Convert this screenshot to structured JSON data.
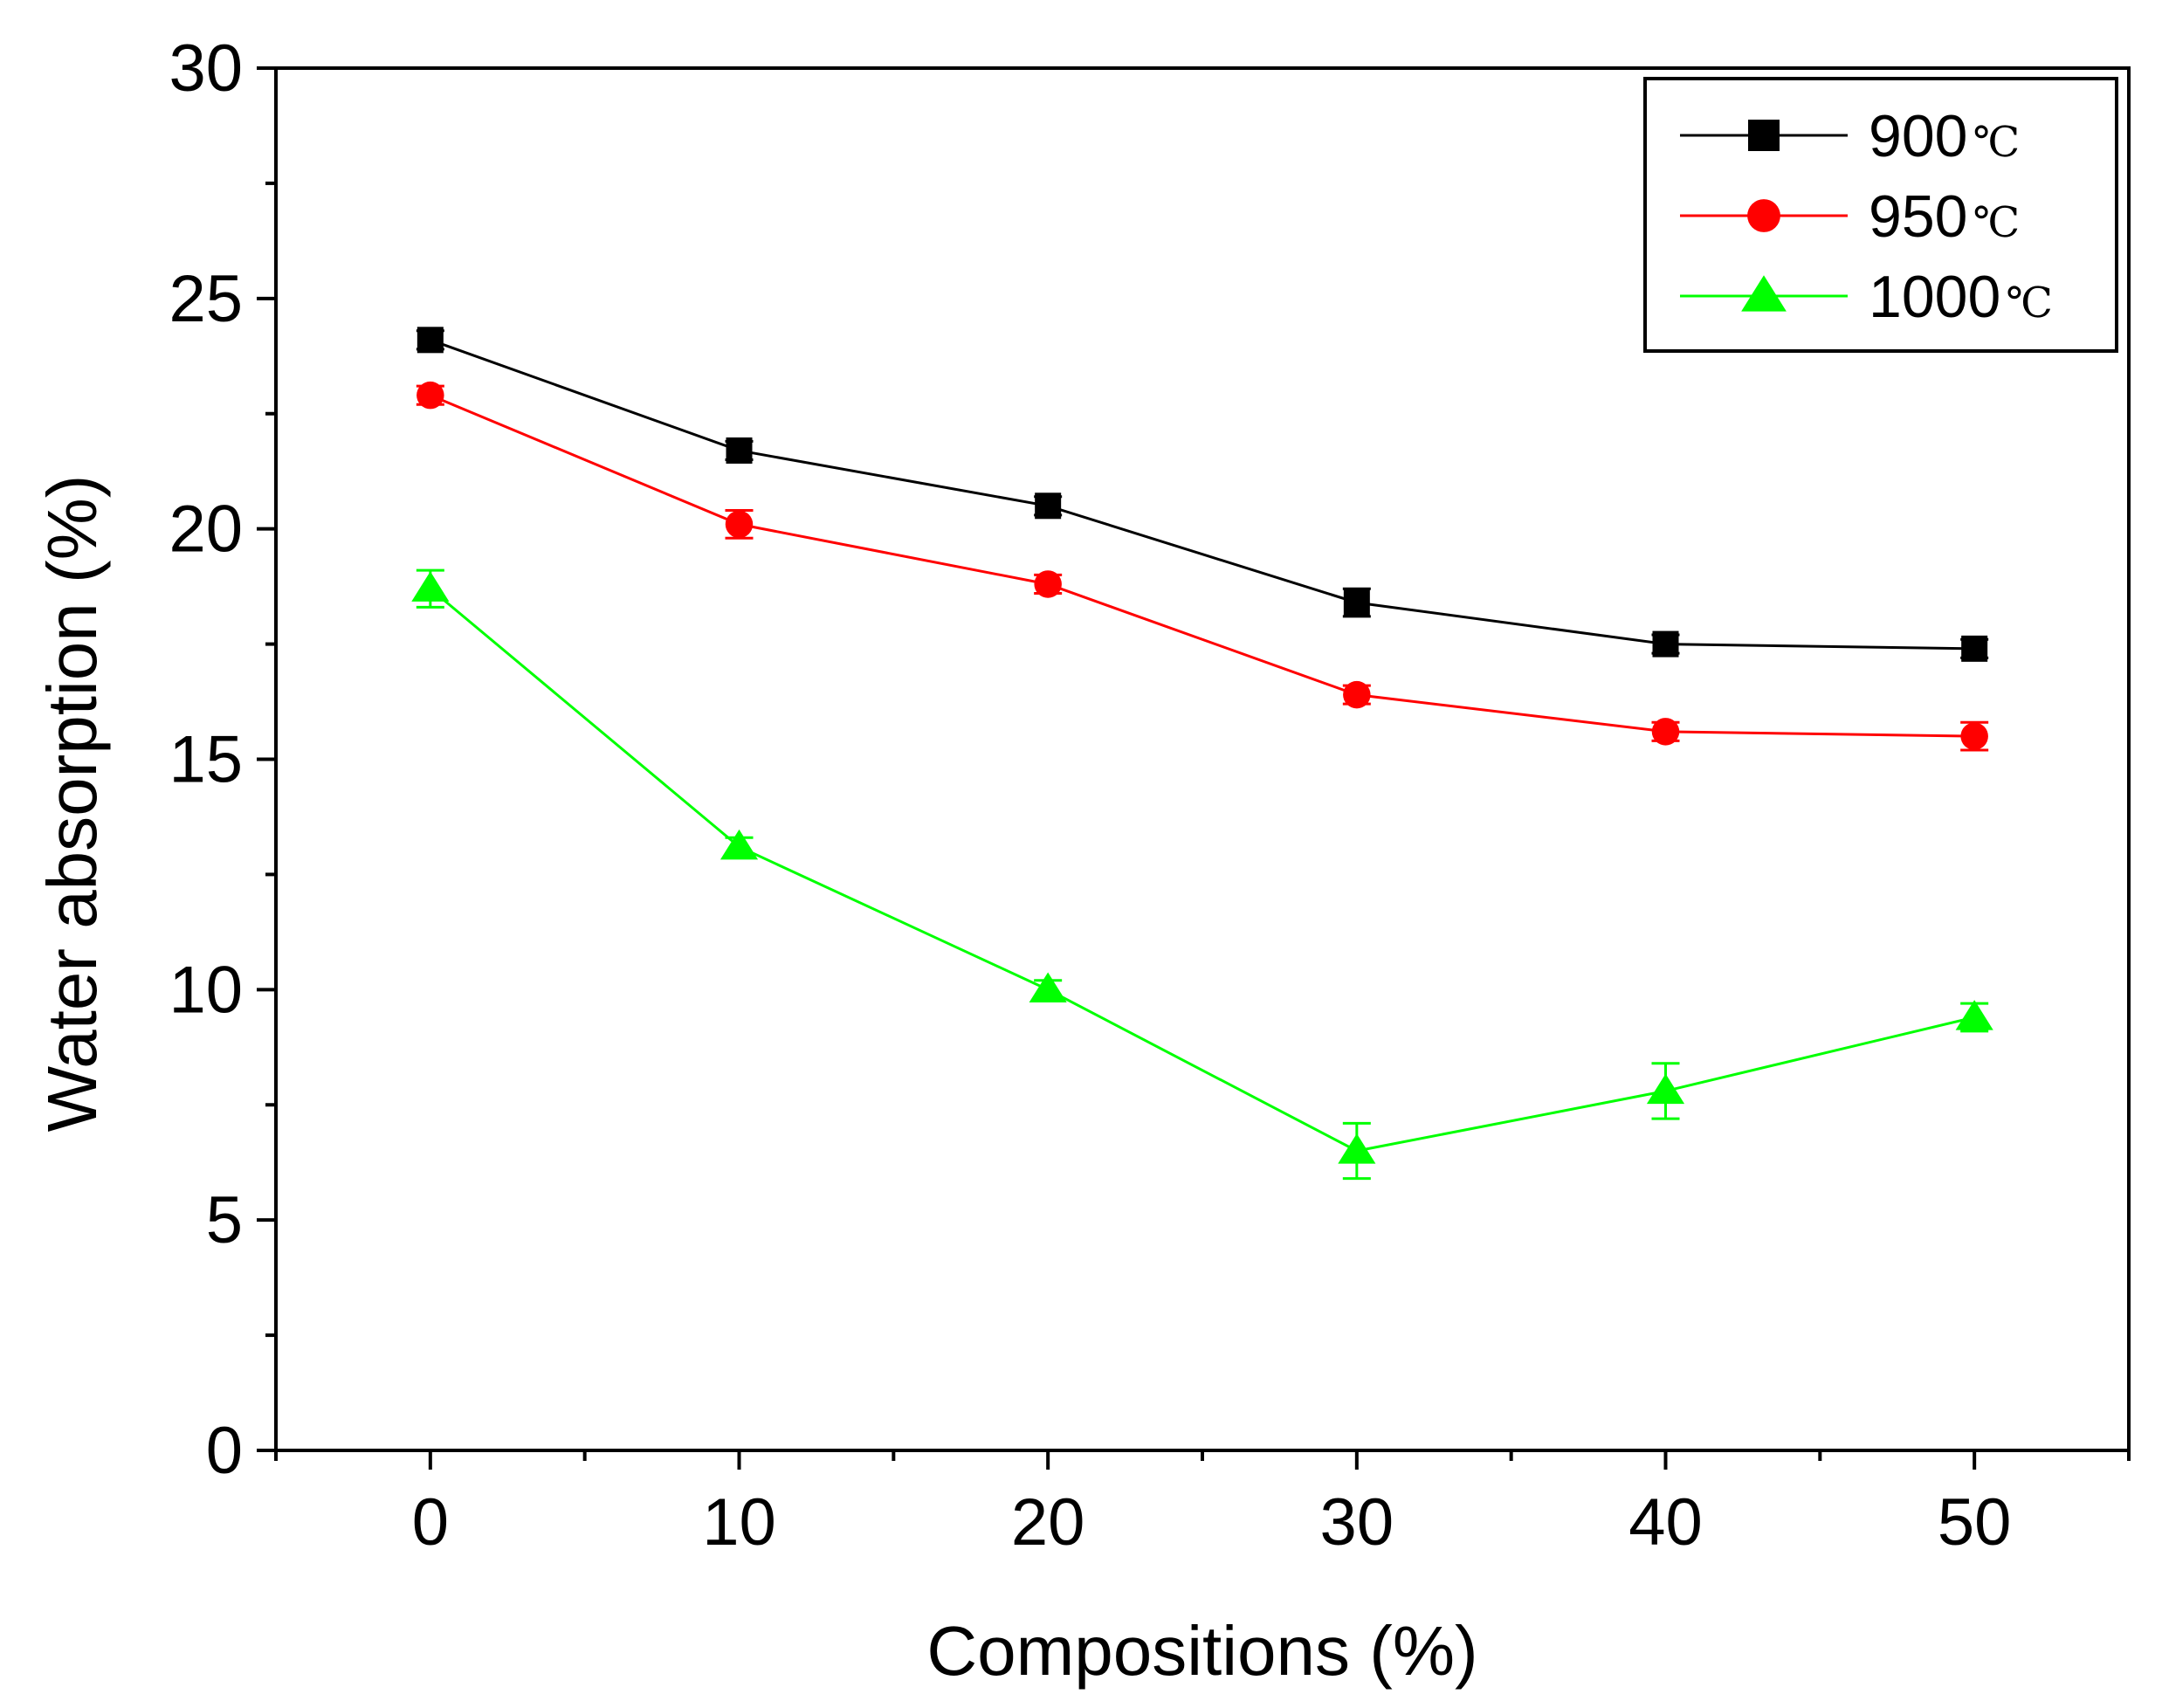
{
  "chart_data": {
    "type": "line",
    "xlabel": "Compositions (%)",
    "ylabel": "Water absorption (%)",
    "xlim": [
      -5,
      55
    ],
    "ylim": [
      0,
      30
    ],
    "x_ticks": [
      0,
      10,
      20,
      30,
      40,
      50
    ],
    "y_ticks": [
      0,
      5,
      10,
      15,
      20,
      25,
      30
    ],
    "x": [
      0,
      10,
      20,
      30,
      40,
      50
    ],
    "legend_position": "top-right",
    "series": [
      {
        "name": "900℃",
        "name_value": "900",
        "name_unit": "℃",
        "color": "#000000",
        "marker": "square",
        "values": [
          24.1,
          21.7,
          20.5,
          18.4,
          17.5,
          17.4
        ],
        "errors": [
          0.2,
          0.2,
          0.2,
          0.3,
          0.2,
          0.2
        ]
      },
      {
        "name": "950℃",
        "name_value": "950",
        "name_unit": "℃",
        "color": "#ff0000",
        "marker": "circle",
        "values": [
          22.9,
          20.1,
          18.8,
          16.4,
          15.6,
          15.5
        ],
        "errors": [
          0.2,
          0.3,
          0.2,
          0.2,
          0.2,
          0.3
        ]
      },
      {
        "name": "1000℃",
        "name_value": "1000",
        "name_unit": "℃",
        "color": "#00ff00",
        "marker": "triangle",
        "values": [
          18.7,
          13.1,
          10.0,
          6.5,
          7.8,
          9.4
        ],
        "errors": [
          0.4,
          0.2,
          0.2,
          0.6,
          0.6,
          0.3
        ]
      }
    ]
  }
}
